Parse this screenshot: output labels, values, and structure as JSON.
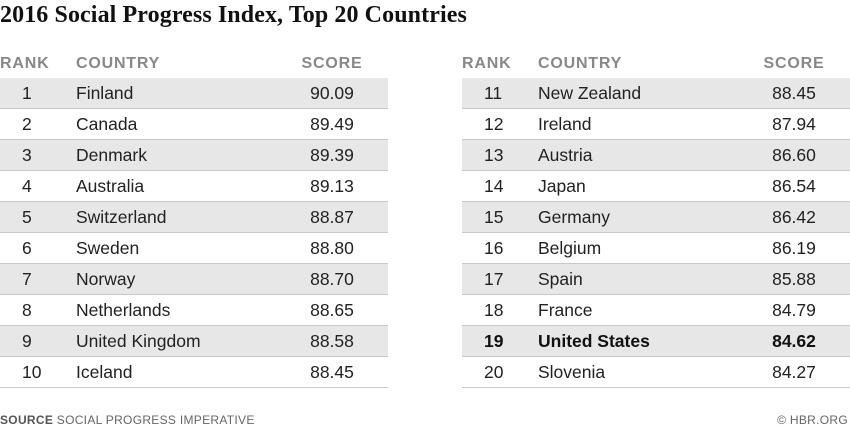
{
  "title": "2016 Social Progress Index, Top 20 Countries",
  "headers": {
    "rank": "RANK",
    "country": "COUNTRY",
    "score": "SCORE"
  },
  "footer": {
    "source_label": "SOURCE",
    "source_text": "SOCIAL PROGRESS IMPERATIVE",
    "credit": "© HBR.ORG"
  },
  "colors": {
    "row_shade": "#e7e7e7",
    "header_text": "#888888",
    "rule": "#c8c8c8"
  },
  "chart_data": {
    "type": "table",
    "title": "2016 Social Progress Index, Top 20 Countries",
    "columns": [
      "RANK",
      "COUNTRY",
      "SCORE"
    ],
    "highlighted_country": "United States",
    "rows": [
      {
        "rank": "1",
        "country": "Finland",
        "score": "90.09"
      },
      {
        "rank": "2",
        "country": "Canada",
        "score": "89.49"
      },
      {
        "rank": "3",
        "country": "Denmark",
        "score": "89.39"
      },
      {
        "rank": "4",
        "country": "Australia",
        "score": "89.13"
      },
      {
        "rank": "5",
        "country": "Switzerland",
        "score": "88.87"
      },
      {
        "rank": "6",
        "country": "Sweden",
        "score": "88.80"
      },
      {
        "rank": "7",
        "country": "Norway",
        "score": "88.70"
      },
      {
        "rank": "8",
        "country": "Netherlands",
        "score": "88.65"
      },
      {
        "rank": "9",
        "country": "United Kingdom",
        "score": "88.58"
      },
      {
        "rank": "10",
        "country": "Iceland",
        "score": "88.45"
      },
      {
        "rank": "11",
        "country": "New Zealand",
        "score": "88.45"
      },
      {
        "rank": "12",
        "country": "Ireland",
        "score": "87.94"
      },
      {
        "rank": "13",
        "country": "Austria",
        "score": "86.60"
      },
      {
        "rank": "14",
        "country": "Japan",
        "score": "86.54"
      },
      {
        "rank": "15",
        "country": "Germany",
        "score": "86.42"
      },
      {
        "rank": "16",
        "country": "Belgium",
        "score": "86.19"
      },
      {
        "rank": "17",
        "country": "Spain",
        "score": "85.88"
      },
      {
        "rank": "18",
        "country": "France",
        "score": "84.79"
      },
      {
        "rank": "19",
        "country": "United States",
        "score": "84.62"
      },
      {
        "rank": "20",
        "country": "Slovenia",
        "score": "84.27"
      }
    ]
  }
}
